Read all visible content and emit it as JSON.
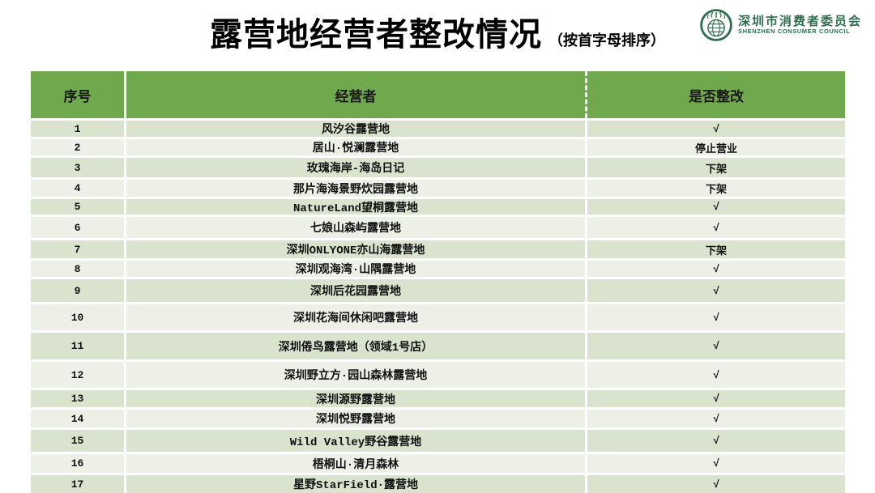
{
  "page": {
    "title": "露营地经营者整改情况",
    "subtitle": "（按首字母排序）"
  },
  "logo": {
    "icon": "consumer-council-emblem",
    "org_name_cn": "深圳市消费者委员会",
    "org_name_en": "SHENZHEN CONSUMER COUNCIL",
    "color": "#2e6e4e"
  },
  "table": {
    "columns": [
      "序号",
      "经营者",
      "是否整改"
    ],
    "header_bg": "#70a84d",
    "row_bg_odd": "#d9e3cd",
    "row_bg_even": "#ecf0e7",
    "rows": [
      {
        "no": "1",
        "operator": "风汐谷露营地",
        "status": "√"
      },
      {
        "no": "2",
        "operator": "居山·悦澜露营地",
        "status": "停止营业"
      },
      {
        "no": "3",
        "operator": "玫瑰海岸-海岛日记",
        "status": "下架"
      },
      {
        "no": "4",
        "operator": "那片海海景野炊园露营地",
        "status": "下架"
      },
      {
        "no": "5",
        "operator": "NatureLand望桐露营地",
        "status": "√"
      },
      {
        "no": "6",
        "operator": "七娘山森屿露营地",
        "status": "√"
      },
      {
        "no": "7",
        "operator": "深圳ONLYONE亦山海露营地",
        "status": "下架"
      },
      {
        "no": "8",
        "operator": "深圳观海湾·山隅露营地",
        "status": "√"
      },
      {
        "no": "9",
        "operator": "深圳后花园露营地",
        "status": "√"
      },
      {
        "no": "10",
        "operator": "深圳花海间休闲吧露营地",
        "status": "√"
      },
      {
        "no": "11",
        "operator": "深圳倦鸟露营地（领域1号店）",
        "status": "√"
      },
      {
        "no": "12",
        "operator": "深圳野立方·园山森林露营地",
        "status": "√"
      },
      {
        "no": "13",
        "operator": "深圳源野露营地",
        "status": "√"
      },
      {
        "no": "14",
        "operator": "深圳悦野露营地",
        "status": "√"
      },
      {
        "no": "15",
        "operator": "Wild Valley野谷露营地",
        "status": "√"
      },
      {
        "no": "16",
        "operator": "梧桐山·清月森林",
        "status": "√"
      },
      {
        "no": "17",
        "operator": "星野StarField·露营地",
        "status": "√"
      }
    ]
  }
}
